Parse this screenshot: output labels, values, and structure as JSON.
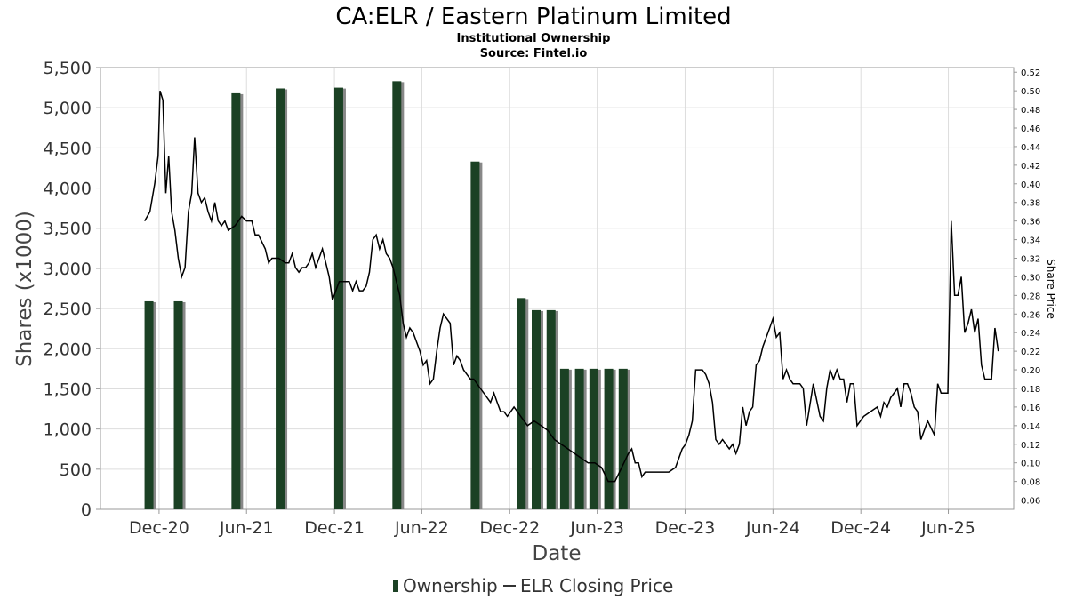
{
  "chart_data": {
    "type": "bar+line",
    "title": "CA:ELR / Eastern Platinum Limited",
    "subtitle_lines": [
      "Institutional Ownership",
      "Source: Fintel.io"
    ],
    "xlabel": "Date",
    "ylabel": "Shares (x1000)",
    "y2label": "Share Price",
    "xlim": [
      "2020-08-01",
      "2025-10-15"
    ],
    "ylim": [
      0,
      5500
    ],
    "y2lim": [
      0.05,
      0.525
    ],
    "x_ticks": [
      {
        "date": "2020-12-01",
        "label": "Dec-20"
      },
      {
        "date": "2021-06-01",
        "label": "Jun-21"
      },
      {
        "date": "2021-12-01",
        "label": "Dec-21"
      },
      {
        "date": "2022-06-01",
        "label": "Jun-22"
      },
      {
        "date": "2022-12-01",
        "label": "Dec-22"
      },
      {
        "date": "2023-06-01",
        "label": "Jun-23"
      },
      {
        "date": "2023-12-01",
        "label": "Dec-23"
      },
      {
        "date": "2024-06-01",
        "label": "Jun-24"
      },
      {
        "date": "2024-12-01",
        "label": "Dec-24"
      },
      {
        "date": "2025-06-01",
        "label": "Jun-25"
      }
    ],
    "y_ticks": [
      {
        "value": 0,
        "label": "0"
      },
      {
        "value": 500,
        "label": "500"
      },
      {
        "value": 1000,
        "label": "1,000"
      },
      {
        "value": 1500,
        "label": "1,500"
      },
      {
        "value": 2000,
        "label": "2,000"
      },
      {
        "value": 2500,
        "label": "2,500"
      },
      {
        "value": 3000,
        "label": "3,000"
      },
      {
        "value": 3500,
        "label": "3,500"
      },
      {
        "value": 4000,
        "label": "4,000"
      },
      {
        "value": 4500,
        "label": "4,500"
      },
      {
        "value": 5000,
        "label": "5,000"
      },
      {
        "value": 5500,
        "label": "5,500"
      }
    ],
    "y2_ticks": [
      {
        "value": 0.06,
        "label": "0.06"
      },
      {
        "value": 0.08,
        "label": "0.08"
      },
      {
        "value": 0.1,
        "label": "0.10"
      },
      {
        "value": 0.12,
        "label": "0.12"
      },
      {
        "value": 0.14,
        "label": "0.14"
      },
      {
        "value": 0.16,
        "label": "0.16"
      },
      {
        "value": 0.18,
        "label": "0.18"
      },
      {
        "value": 0.2,
        "label": "0.20"
      },
      {
        "value": 0.22,
        "label": "0.22"
      },
      {
        "value": 0.24,
        "label": "0.24"
      },
      {
        "value": 0.26,
        "label": "0.26"
      },
      {
        "value": 0.28,
        "label": "0.28"
      },
      {
        "value": 0.3,
        "label": "0.30"
      },
      {
        "value": 0.32,
        "label": "0.32"
      },
      {
        "value": 0.34,
        "label": "0.34"
      },
      {
        "value": 0.36,
        "label": "0.36"
      },
      {
        "value": 0.38,
        "label": "0.38"
      },
      {
        "value": 0.4,
        "label": "0.40"
      },
      {
        "value": 0.42,
        "label": "0.42"
      },
      {
        "value": 0.44,
        "label": "0.44"
      },
      {
        "value": 0.46,
        "label": "0.46"
      },
      {
        "value": 0.48,
        "label": "0.48"
      },
      {
        "value": 0.5,
        "label": "0.50"
      },
      {
        "value": 0.52,
        "label": "0.52"
      }
    ],
    "grid": true,
    "legend": {
      "position": "bottom",
      "entries": [
        "Ownership",
        "ELR Closing Price"
      ]
    },
    "colors": {
      "bar": "#1b4124",
      "bar_shadow": "#888888",
      "line": "#000000",
      "grid": "#dddddd"
    },
    "ownership": [
      {
        "date": "2020-11-10",
        "value": 2590
      },
      {
        "date": "2021-01-10",
        "value": 2590
      },
      {
        "date": "2021-05-10",
        "value": 5180
      },
      {
        "date": "2021-08-10",
        "value": 5240
      },
      {
        "date": "2021-12-10",
        "value": 5250
      },
      {
        "date": "2022-04-10",
        "value": 5330
      },
      {
        "date": "2022-09-20",
        "value": 4330
      },
      {
        "date": "2022-12-25",
        "value": 2630
      },
      {
        "date": "2023-01-25",
        "value": 2480
      },
      {
        "date": "2023-02-25",
        "value": 2480
      },
      {
        "date": "2023-03-25",
        "value": 1750
      },
      {
        "date": "2023-04-25",
        "value": 1750
      },
      {
        "date": "2023-05-25",
        "value": 1750
      },
      {
        "date": "2023-06-25",
        "value": 1750
      },
      {
        "date": "2023-07-25",
        "value": 1750
      }
    ],
    "price": [
      [
        "2020-11-01",
        0.36
      ],
      [
        "2020-11-12",
        0.37
      ],
      [
        "2020-11-22",
        0.4
      ],
      [
        "2020-11-29",
        0.43
      ],
      [
        "2020-12-03",
        0.5
      ],
      [
        "2020-12-09",
        0.49
      ],
      [
        "2020-12-15",
        0.39
      ],
      [
        "2020-12-21",
        0.43
      ],
      [
        "2020-12-27",
        0.37
      ],
      [
        "2021-01-03",
        0.35
      ],
      [
        "2021-01-10",
        0.32
      ],
      [
        "2021-01-17",
        0.3
      ],
      [
        "2021-01-24",
        0.31
      ],
      [
        "2021-01-31",
        0.37
      ],
      [
        "2021-02-07",
        0.39
      ],
      [
        "2021-02-13",
        0.45
      ],
      [
        "2021-02-20",
        0.39
      ],
      [
        "2021-02-27",
        0.38
      ],
      [
        "2021-03-06",
        0.385
      ],
      [
        "2021-03-13",
        0.37
      ],
      [
        "2021-03-20",
        0.36
      ],
      [
        "2021-03-27",
        0.38
      ],
      [
        "2021-04-03",
        0.36
      ],
      [
        "2021-04-10",
        0.355
      ],
      [
        "2021-04-17",
        0.36
      ],
      [
        "2021-04-24",
        0.35
      ],
      [
        "2021-05-08",
        0.355
      ],
      [
        "2021-05-22",
        0.365
      ],
      [
        "2021-06-01",
        0.36
      ],
      [
        "2021-06-12",
        0.36
      ],
      [
        "2021-06-19",
        0.345
      ],
      [
        "2021-06-26",
        0.345
      ],
      [
        "2021-07-10",
        0.33
      ],
      [
        "2021-07-17",
        0.315
      ],
      [
        "2021-07-24",
        0.32
      ],
      [
        "2021-08-07",
        0.32
      ],
      [
        "2021-08-21",
        0.315
      ],
      [
        "2021-08-28",
        0.315
      ],
      [
        "2021-09-04",
        0.325
      ],
      [
        "2021-09-11",
        0.31
      ],
      [
        "2021-09-18",
        0.305
      ],
      [
        "2021-09-25",
        0.31
      ],
      [
        "2021-10-02",
        0.31
      ],
      [
        "2021-10-09",
        0.315
      ],
      [
        "2021-10-16",
        0.325
      ],
      [
        "2021-10-23",
        0.31
      ],
      [
        "2021-11-06",
        0.33
      ],
      [
        "2021-11-13",
        0.315
      ],
      [
        "2021-11-20",
        0.3
      ],
      [
        "2021-11-27",
        0.275
      ],
      [
        "2021-12-11",
        0.295
      ],
      [
        "2021-12-25",
        0.295
      ],
      [
        "2022-01-01",
        0.295
      ],
      [
        "2022-01-08",
        0.285
      ],
      [
        "2022-01-15",
        0.295
      ],
      [
        "2022-01-22",
        0.285
      ],
      [
        "2022-01-29",
        0.285
      ],
      [
        "2022-02-05",
        0.29
      ],
      [
        "2022-02-12",
        0.305
      ],
      [
        "2022-02-19",
        0.34
      ],
      [
        "2022-02-26",
        0.345
      ],
      [
        "2022-03-05",
        0.33
      ],
      [
        "2022-03-12",
        0.34
      ],
      [
        "2022-03-19",
        0.325
      ],
      [
        "2022-03-26",
        0.32
      ],
      [
        "2022-04-02",
        0.31
      ],
      [
        "2022-04-16",
        0.28
      ],
      [
        "2022-04-23",
        0.25
      ],
      [
        "2022-04-30",
        0.235
      ],
      [
        "2022-05-07",
        0.245
      ],
      [
        "2022-05-14",
        0.24
      ],
      [
        "2022-05-21",
        0.23
      ],
      [
        "2022-05-28",
        0.22
      ],
      [
        "2022-06-04",
        0.205
      ],
      [
        "2022-06-11",
        0.21
      ],
      [
        "2022-06-18",
        0.185
      ],
      [
        "2022-06-25",
        0.19
      ],
      [
        "2022-07-02",
        0.22
      ],
      [
        "2022-07-09",
        0.245
      ],
      [
        "2022-07-16",
        0.26
      ],
      [
        "2022-07-30",
        0.25
      ],
      [
        "2022-08-06",
        0.205
      ],
      [
        "2022-08-13",
        0.215
      ],
      [
        "2022-08-20",
        0.21
      ],
      [
        "2022-08-27",
        0.2
      ],
      [
        "2022-09-03",
        0.195
      ],
      [
        "2022-09-10",
        0.19
      ],
      [
        "2022-09-17",
        0.19
      ],
      [
        "2022-10-01",
        0.18
      ],
      [
        "2022-10-08",
        0.175
      ],
      [
        "2022-10-15",
        0.17
      ],
      [
        "2022-10-22",
        0.165
      ],
      [
        "2022-10-29",
        0.175
      ],
      [
        "2022-11-05",
        0.165
      ],
      [
        "2022-11-12",
        0.155
      ],
      [
        "2022-11-19",
        0.155
      ],
      [
        "2022-11-26",
        0.15
      ],
      [
        "2022-12-03",
        0.155
      ],
      [
        "2022-12-10",
        0.16
      ],
      [
        "2022-12-17",
        0.155
      ],
      [
        "2022-12-24",
        0.15
      ],
      [
        "2023-01-07",
        0.14
      ],
      [
        "2023-01-21",
        0.145
      ],
      [
        "2023-02-04",
        0.14
      ],
      [
        "2023-02-18",
        0.135
      ],
      [
        "2023-03-04",
        0.125
      ],
      [
        "2023-03-18",
        0.12
      ],
      [
        "2023-04-01",
        0.115
      ],
      [
        "2023-04-15",
        0.11
      ],
      [
        "2023-04-29",
        0.105
      ],
      [
        "2023-05-13",
        0.1
      ],
      [
        "2023-05-27",
        0.1
      ],
      [
        "2023-06-10",
        0.095
      ],
      [
        "2023-06-24",
        0.08
      ],
      [
        "2023-07-08",
        0.08
      ],
      [
        "2023-07-22",
        0.095
      ],
      [
        "2023-08-05",
        0.11
      ],
      [
        "2023-08-12",
        0.115
      ],
      [
        "2023-08-19",
        0.1
      ],
      [
        "2023-08-26",
        0.1
      ],
      [
        "2023-09-02",
        0.085
      ],
      [
        "2023-09-09",
        0.09
      ],
      [
        "2023-09-23",
        0.09
      ],
      [
        "2023-10-07",
        0.09
      ],
      [
        "2023-10-28",
        0.09
      ],
      [
        "2023-11-11",
        0.095
      ],
      [
        "2023-11-25",
        0.115
      ],
      [
        "2023-12-02",
        0.12
      ],
      [
        "2023-12-09",
        0.13
      ],
      [
        "2023-12-16",
        0.145
      ],
      [
        "2023-12-23",
        0.2
      ],
      [
        "2024-01-06",
        0.2
      ],
      [
        "2024-01-13",
        0.195
      ],
      [
        "2024-01-20",
        0.185
      ],
      [
        "2024-01-27",
        0.165
      ],
      [
        "2024-02-03",
        0.125
      ],
      [
        "2024-02-10",
        0.12
      ],
      [
        "2024-02-17",
        0.125
      ],
      [
        "2024-02-24",
        0.12
      ],
      [
        "2024-03-02",
        0.115
      ],
      [
        "2024-03-09",
        0.12
      ],
      [
        "2024-03-16",
        0.11
      ],
      [
        "2024-03-23",
        0.12
      ],
      [
        "2024-03-30",
        0.16
      ],
      [
        "2024-04-06",
        0.14
      ],
      [
        "2024-04-13",
        0.155
      ],
      [
        "2024-04-20",
        0.16
      ],
      [
        "2024-04-27",
        0.205
      ],
      [
        "2024-05-04",
        0.21
      ],
      [
        "2024-05-11",
        0.225
      ],
      [
        "2024-05-25",
        0.245
      ],
      [
        "2024-06-01",
        0.255
      ],
      [
        "2024-06-08",
        0.235
      ],
      [
        "2024-06-15",
        0.24
      ],
      [
        "2024-06-22",
        0.19
      ],
      [
        "2024-06-29",
        0.2
      ],
      [
        "2024-07-06",
        0.19
      ],
      [
        "2024-07-13",
        0.185
      ],
      [
        "2024-07-20",
        0.185
      ],
      [
        "2024-07-27",
        0.185
      ],
      [
        "2024-08-03",
        0.18
      ],
      [
        "2024-08-10",
        0.14
      ],
      [
        "2024-08-24",
        0.185
      ],
      [
        "2024-09-07",
        0.15
      ],
      [
        "2024-09-14",
        0.145
      ],
      [
        "2024-09-21",
        0.18
      ],
      [
        "2024-09-28",
        0.2
      ],
      [
        "2024-10-05",
        0.19
      ],
      [
        "2024-10-12",
        0.2
      ],
      [
        "2024-10-19",
        0.19
      ],
      [
        "2024-10-26",
        0.19
      ],
      [
        "2024-11-02",
        0.165
      ],
      [
        "2024-11-09",
        0.185
      ],
      [
        "2024-11-16",
        0.185
      ],
      [
        "2024-11-23",
        0.14
      ],
      [
        "2024-11-30",
        0.145
      ],
      [
        "2024-12-07",
        0.15
      ],
      [
        "2024-12-21",
        0.155
      ],
      [
        "2025-01-04",
        0.16
      ],
      [
        "2025-01-11",
        0.15
      ],
      [
        "2025-01-18",
        0.165
      ],
      [
        "2025-01-25",
        0.16
      ],
      [
        "2025-02-01",
        0.17
      ],
      [
        "2025-02-15",
        0.18
      ],
      [
        "2025-02-22",
        0.16
      ],
      [
        "2025-03-01",
        0.185
      ],
      [
        "2025-03-08",
        0.185
      ],
      [
        "2025-03-15",
        0.175
      ],
      [
        "2025-03-22",
        0.16
      ],
      [
        "2025-03-29",
        0.155
      ],
      [
        "2025-04-05",
        0.125
      ],
      [
        "2025-04-19",
        0.145
      ],
      [
        "2025-05-03",
        0.13
      ],
      [
        "2025-05-10",
        0.185
      ],
      [
        "2025-05-17",
        0.175
      ],
      [
        "2025-05-31",
        0.175
      ],
      [
        "2025-06-07",
        0.36
      ],
      [
        "2025-06-14",
        0.28
      ],
      [
        "2025-06-21",
        0.28
      ],
      [
        "2025-06-28",
        0.3
      ],
      [
        "2025-07-05",
        0.24
      ],
      [
        "2025-07-12",
        0.25
      ],
      [
        "2025-07-19",
        0.265
      ],
      [
        "2025-07-26",
        0.24
      ],
      [
        "2025-08-02",
        0.255
      ],
      [
        "2025-08-09",
        0.205
      ],
      [
        "2025-08-16",
        0.19
      ],
      [
        "2025-08-30",
        0.19
      ],
      [
        "2025-09-06",
        0.245
      ],
      [
        "2025-09-13",
        0.22
      ]
    ]
  }
}
